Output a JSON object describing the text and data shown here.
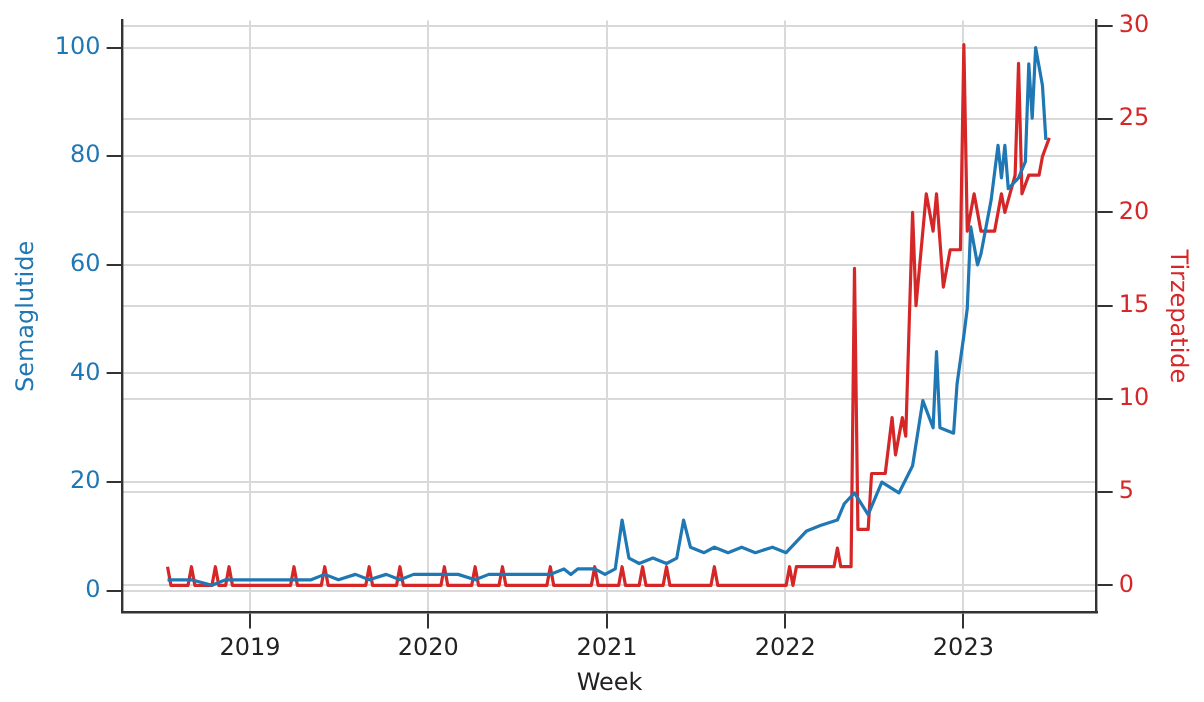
{
  "chart_data": {
    "type": "line",
    "xlabel": "Week",
    "ylabel": "Semaglutide",
    "y2label": "Tirzepatide",
    "xlim": [
      "2018-04-15",
      "2023-10-01"
    ],
    "xticks": [
      "2019",
      "2020",
      "2021",
      "2022",
      "2023"
    ],
    "ylim": [
      -4,
      105
    ],
    "yticks": [
      0,
      20,
      40,
      60,
      80,
      100
    ],
    "y2lim": [
      -1.45,
      30.3
    ],
    "y2ticks": [
      0,
      5,
      10,
      15,
      20,
      25,
      30
    ],
    "grid": true,
    "legend": false,
    "marker": "none",
    "line_style": "solid",
    "series": [
      {
        "color": "#1f77b4",
        "x": [
          "2018-07-16",
          "2018-09-03",
          "2018-10-15",
          "2018-11-12",
          "2019-01-07",
          "2019-03-04",
          "2019-05-06",
          "2019-06-03",
          "2019-07-01",
          "2019-08-05",
          "2019-09-02",
          "2019-10-07",
          "2019-11-04",
          "2019-12-02",
          "2020-01-06",
          "2020-03-02",
          "2020-04-06",
          "2020-05-04",
          "2020-07-06",
          "2020-09-07",
          "2020-10-05",
          "2020-10-19",
          "2020-11-02",
          "2020-12-07",
          "2020-12-28",
          "2021-01-18",
          "2021-02-01",
          "2021-02-15",
          "2021-03-08",
          "2021-04-05",
          "2021-05-03",
          "2021-05-24",
          "2021-06-07",
          "2021-06-21",
          "2021-07-19",
          "2021-08-09",
          "2021-09-06",
          "2021-10-04",
          "2021-11-01",
          "2021-12-06",
          "2022-01-03",
          "2022-02-14",
          "2022-03-14",
          "2022-04-18",
          "2022-05-02",
          "2022-05-23",
          "2022-06-20",
          "2022-07-18",
          "2022-08-22",
          "2022-09-19",
          "2022-10-10",
          "2022-10-31",
          "2022-11-07",
          "2022-11-14",
          "2022-12-12",
          "2022-12-19",
          "2023-01-02",
          "2023-01-09",
          "2023-01-16",
          "2023-01-30",
          "2023-02-06",
          "2023-02-27",
          "2023-03-13",
          "2023-03-20",
          "2023-03-27",
          "2023-04-03",
          "2023-04-24",
          "2023-05-08",
          "2023-05-15",
          "2023-05-22",
          "2023-05-29",
          "2023-06-12",
          "2023-06-19"
        ],
        "values": [
          2,
          2,
          1,
          2,
          2,
          2,
          2,
          3,
          2,
          3,
          2,
          3,
          2,
          3,
          3,
          3,
          2,
          3,
          3,
          3,
          4,
          3,
          4,
          4,
          3,
          4,
          13,
          6,
          5,
          6,
          5,
          6,
          13,
          8,
          7,
          8,
          7,
          8,
          7,
          8,
          7,
          11,
          12,
          13,
          16,
          18,
          14,
          20,
          18,
          23,
          35,
          30,
          44,
          30,
          29,
          38,
          47,
          52,
          67,
          60,
          62,
          72,
          82,
          76,
          82,
          74,
          76,
          79,
          97,
          87,
          100,
          93,
          83
        ]
      },
      {
        "color": "#d62728",
        "axis": "y2",
        "x": [
          "2018-07-16",
          "2018-07-23",
          "2018-08-27",
          "2018-09-03",
          "2018-09-10",
          "2018-10-15",
          "2018-10-22",
          "2018-10-29",
          "2018-11-12",
          "2018-11-19",
          "2018-11-26",
          "2019-03-25",
          "2019-04-01",
          "2019-04-08",
          "2019-05-27",
          "2019-06-03",
          "2019-06-10",
          "2019-08-26",
          "2019-09-02",
          "2019-09-09",
          "2019-10-28",
          "2019-11-04",
          "2019-11-11",
          "2020-01-27",
          "2020-02-03",
          "2020-02-10",
          "2020-03-30",
          "2020-04-06",
          "2020-04-13",
          "2020-05-25",
          "2020-06-01",
          "2020-06-08",
          "2020-08-31",
          "2020-09-07",
          "2020-09-14",
          "2020-11-30",
          "2020-12-07",
          "2020-12-14",
          "2021-01-25",
          "2021-02-01",
          "2021-02-08",
          "2021-03-08",
          "2021-03-15",
          "2021-03-22",
          "2021-04-26",
          "2021-05-03",
          "2021-05-10",
          "2021-08-02",
          "2021-08-09",
          "2021-08-16",
          "2022-01-03",
          "2022-01-10",
          "2022-01-17",
          "2022-01-24",
          "2022-04-11",
          "2022-04-18",
          "2022-04-25",
          "2022-05-16",
          "2022-05-23",
          "2022-05-30",
          "2022-06-20",
          "2022-06-27",
          "2022-07-25",
          "2022-08-08",
          "2022-08-15",
          "2022-08-29",
          "2022-09-05",
          "2022-09-19",
          "2022-09-26",
          "2022-10-17",
          "2022-10-31",
          "2022-11-07",
          "2022-11-21",
          "2022-12-05",
          "2022-12-26",
          "2023-01-02",
          "2023-01-09",
          "2023-01-23",
          "2023-02-06",
          "2023-03-06",
          "2023-03-20",
          "2023-03-27",
          "2023-04-17",
          "2023-04-24",
          "2023-05-01",
          "2023-05-15",
          "2023-06-05",
          "2023-06-12",
          "2023-06-26"
        ],
        "values": [
          1,
          0,
          0,
          1,
          0,
          0,
          1,
          0,
          0,
          1,
          0,
          0,
          1,
          0,
          0,
          1,
          0,
          0,
          1,
          0,
          0,
          1,
          0,
          0,
          1,
          0,
          0,
          1,
          0,
          0,
          1,
          0,
          0,
          1,
          0,
          0,
          1,
          0,
          0,
          1,
          0,
          0,
          1,
          0,
          0,
          1,
          0,
          0,
          1,
          0,
          0,
          1,
          0,
          1,
          1,
          2,
          1,
          1,
          17,
          3,
          3,
          6,
          6,
          9,
          7,
          9,
          8,
          20,
          15,
          21,
          19,
          21,
          16,
          18,
          18,
          29,
          19,
          21,
          19,
          19,
          21,
          20,
          22,
          28,
          21,
          22,
          22,
          23,
          24
        ]
      }
    ]
  }
}
